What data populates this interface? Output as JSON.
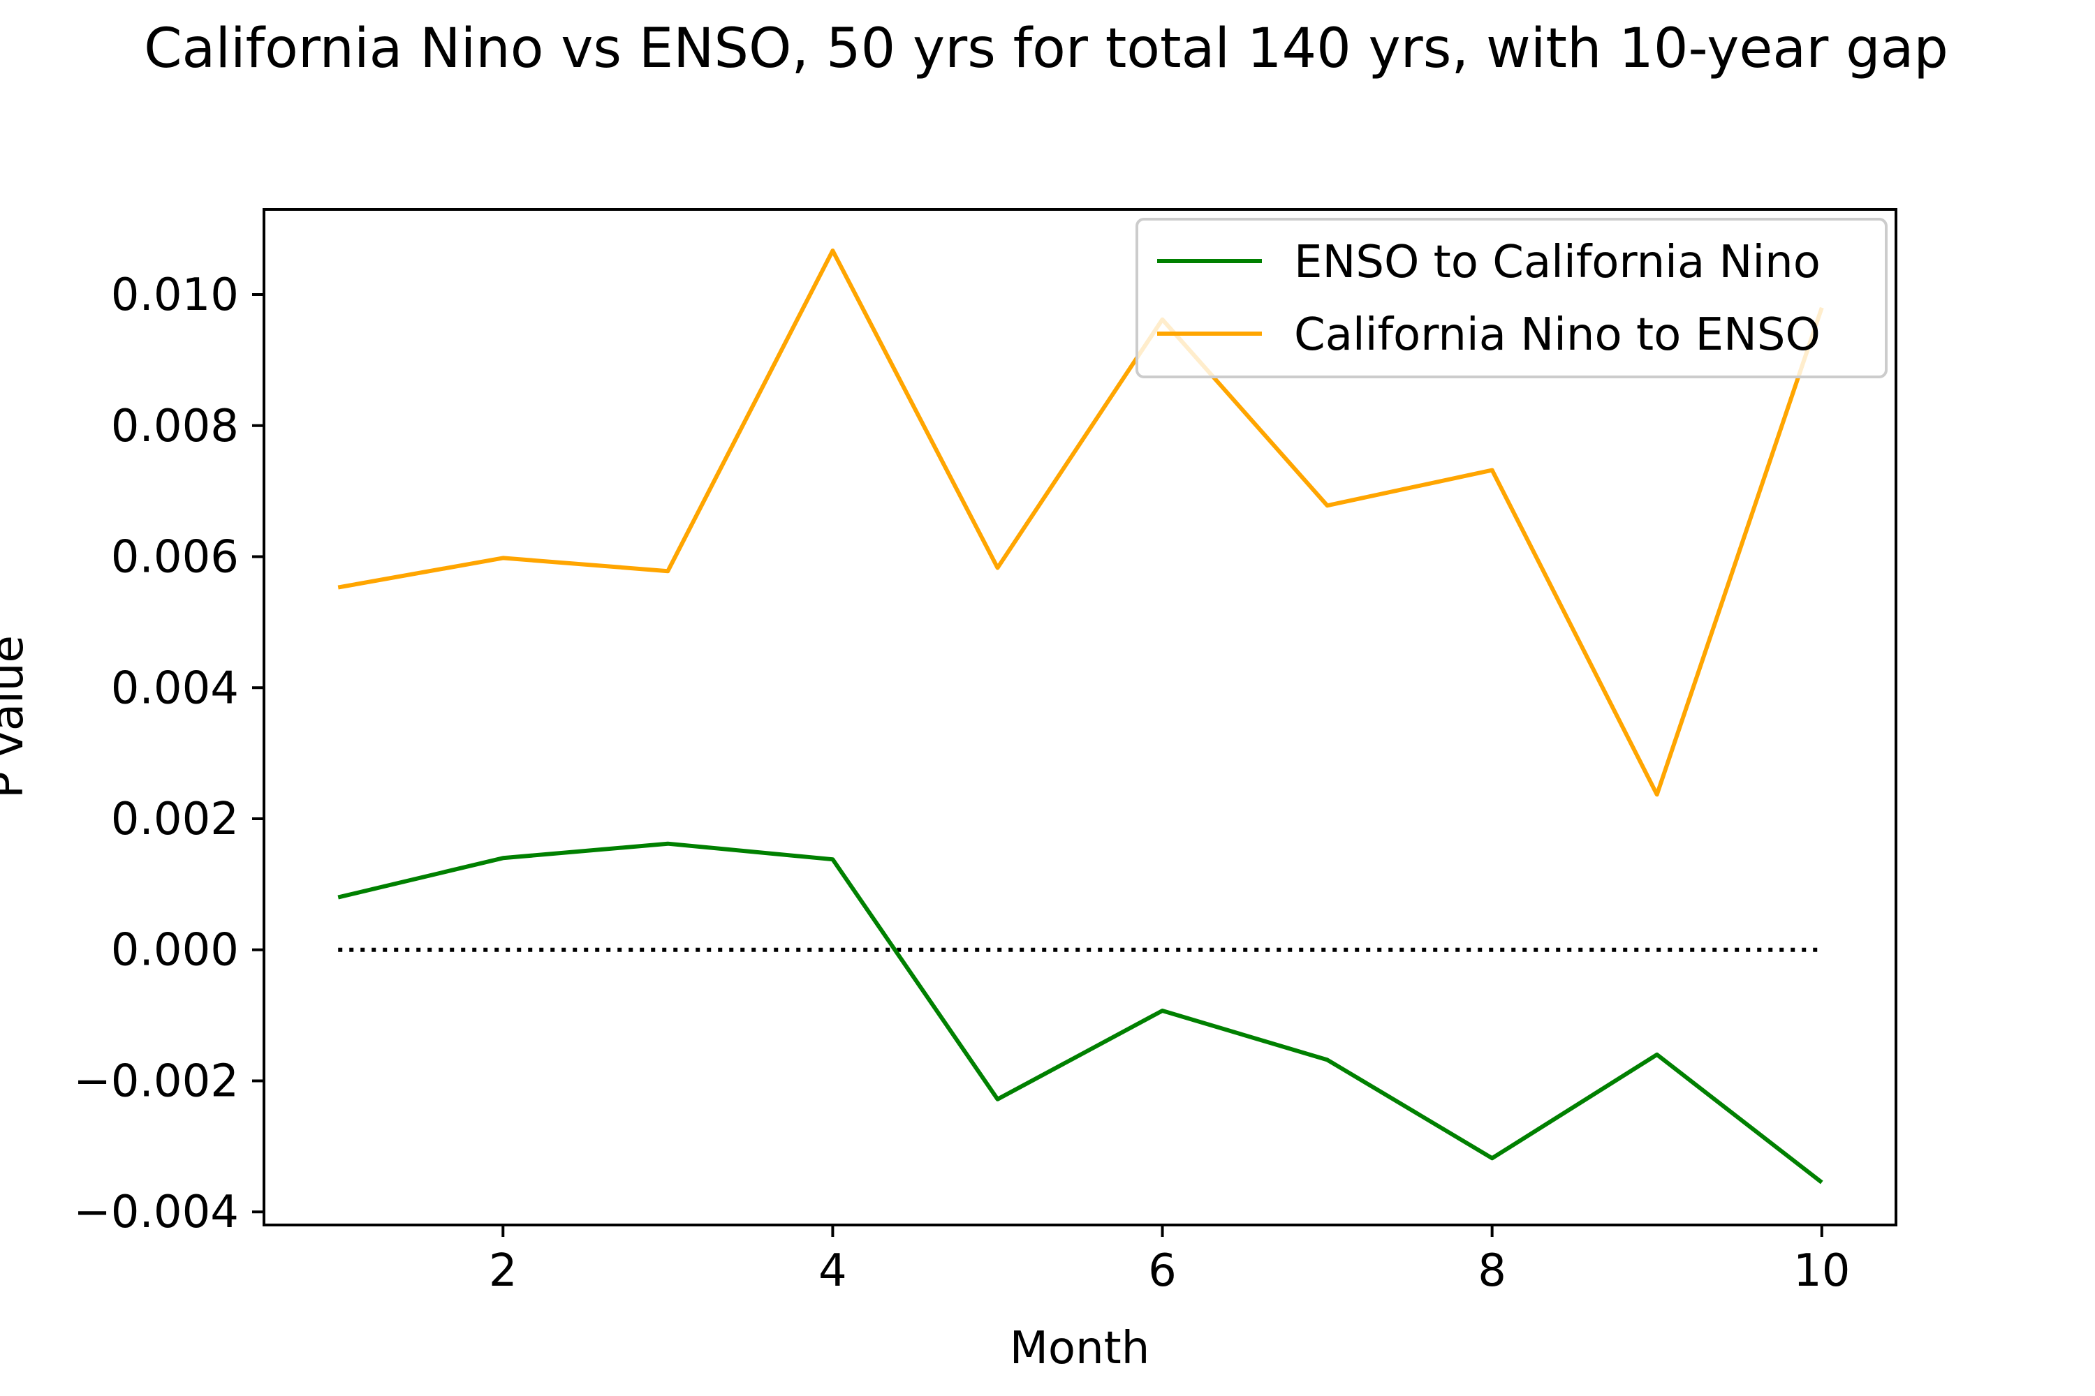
{
  "chart_data": {
    "type": "line",
    "title": "California Nino vs ENSO, 50 yrs for total 140 yrs, with 10-year gap",
    "xlabel": "Month",
    "ylabel": "P value",
    "x": [
      1,
      2,
      3,
      4,
      5,
      6,
      7,
      8,
      9,
      10
    ],
    "xlim": [
      0.55,
      10.45
    ],
    "ylim": [
      -0.0042,
      0.0113
    ],
    "xticks": [
      2,
      4,
      6,
      8,
      10
    ],
    "yticks": [
      -0.004,
      -0.002,
      0.0,
      0.002,
      0.004,
      0.006,
      0.008,
      0.01
    ],
    "xtick_labels": [
      "2",
      "4",
      "6",
      "8",
      "10"
    ],
    "ytick_labels": [
      "−0.004",
      "−0.002",
      "0.000",
      "0.002",
      "0.004",
      "0.006",
      "0.008",
      "0.010"
    ],
    "grid": false,
    "legend_position": "top-right",
    "series": [
      {
        "name": "ENSO to California Nino",
        "color": "#008000",
        "values": [
          0.0008,
          0.0014,
          0.00162,
          0.00138,
          -0.00228,
          -0.00093,
          -0.00168,
          -0.00318,
          -0.0016,
          -0.00355
        ]
      },
      {
        "name": "California Nino to ENSO",
        "color": "#FFA500",
        "values": [
          0.00553,
          0.00598,
          0.00578,
          0.01067,
          0.00583,
          0.00962,
          0.00678,
          0.00732,
          0.00237,
          0.0098
        ]
      }
    ],
    "reference_line": {
      "y": 0,
      "x_range": [
        1,
        10
      ],
      "style": "dotted",
      "color": "#000000"
    }
  }
}
